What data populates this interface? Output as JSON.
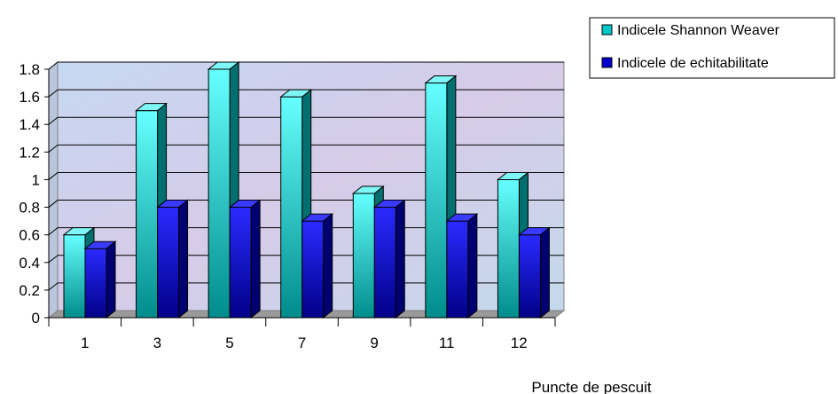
{
  "chart_data": {
    "type": "bar",
    "title": "",
    "xlabel": "Puncte de pescuit",
    "ylabel": "",
    "categories": [
      "1",
      "3",
      "5",
      "7",
      "9",
      "11",
      "12"
    ],
    "series": [
      {
        "name": "Indicele Shannon Weaver",
        "values": [
          0.6,
          1.5,
          1.8,
          1.6,
          0.9,
          1.7,
          1.0
        ],
        "color": "#00c8c8"
      },
      {
        "name": "Indicele de echitabilitate",
        "values": [
          0.5,
          0.8,
          0.8,
          0.7,
          0.8,
          0.7,
          0.6
        ],
        "color": "#0000cc"
      }
    ],
    "ylim": [
      0,
      1.8
    ],
    "yticks": [
      "0",
      "0.2",
      "0.4",
      "0.6",
      "0.8",
      "1",
      "1.2",
      "1.4",
      "1.6",
      "1.8"
    ],
    "grid": true,
    "legend_position": "top-right",
    "style": "3d-column"
  }
}
